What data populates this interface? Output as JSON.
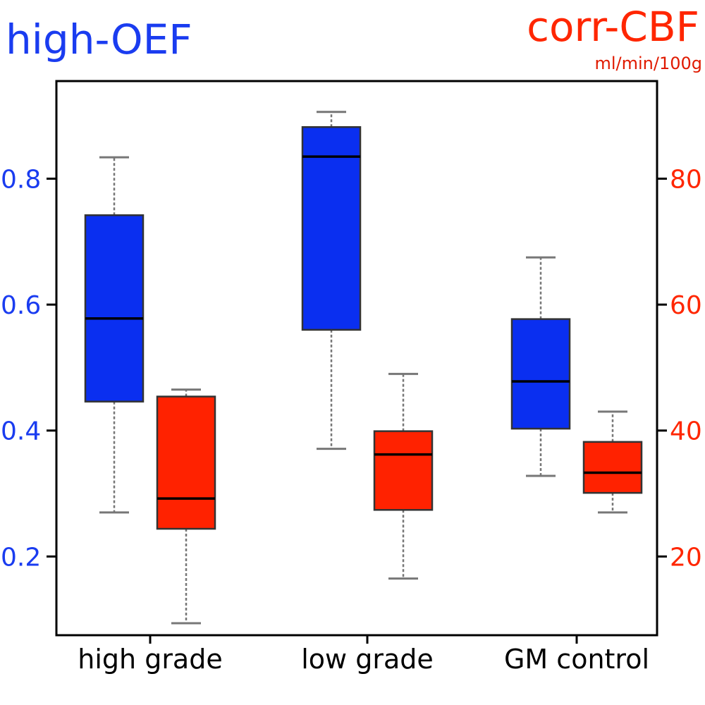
{
  "chart_data": {
    "type": "box",
    "categories": [
      "high grade",
      "low grade",
      "GM control"
    ],
    "left_axis": {
      "title": "high-OEF",
      "color": "#0a2ff0",
      "ylim": [
        0.075,
        0.955
      ],
      "ticks": [
        0.2,
        0.4,
        0.6,
        0.8
      ],
      "tick_labels": [
        "0.2",
        "0.4",
        "0.6",
        "0.8"
      ]
    },
    "right_axis": {
      "title": "corr-CBF",
      "unit": "ml/min/100g",
      "color": "#ff2200",
      "ylim": [
        7.5,
        95.5
      ],
      "ticks": [
        20,
        40,
        60,
        80
      ],
      "tick_labels": [
        "20",
        "40",
        "60",
        "80"
      ]
    },
    "series": [
      {
        "name": "high-OEF",
        "axis": "left",
        "color": "#0a2ff0",
        "boxes": [
          {
            "category": "high grade",
            "whisker_low": 0.27,
            "q1": 0.446,
            "median": 0.578,
            "q3": 0.742,
            "whisker_high": 0.834
          },
          {
            "category": "low grade",
            "whisker_low": 0.371,
            "q1": 0.56,
            "median": 0.835,
            "q3": 0.882,
            "whisker_high": 0.906
          },
          {
            "category": "GM control",
            "whisker_low": 0.328,
            "q1": 0.403,
            "median": 0.478,
            "q3": 0.577,
            "whisker_high": 0.675
          }
        ]
      },
      {
        "name": "corr-CBF",
        "axis": "right",
        "color": "#ff2200",
        "boxes": [
          {
            "category": "high grade",
            "whisker_low": 9.4,
            "q1": 24.4,
            "median": 29.2,
            "q3": 45.4,
            "whisker_high": 46.5
          },
          {
            "category": "low grade",
            "whisker_low": 16.5,
            "q1": 27.4,
            "median": 36.2,
            "q3": 39.9,
            "whisker_high": 49.0
          },
          {
            "category": "GM control",
            "whisker_low": 27.0,
            "q1": 30.1,
            "median": 33.3,
            "q3": 38.2,
            "whisker_high": 43.0
          }
        ]
      }
    ]
  }
}
